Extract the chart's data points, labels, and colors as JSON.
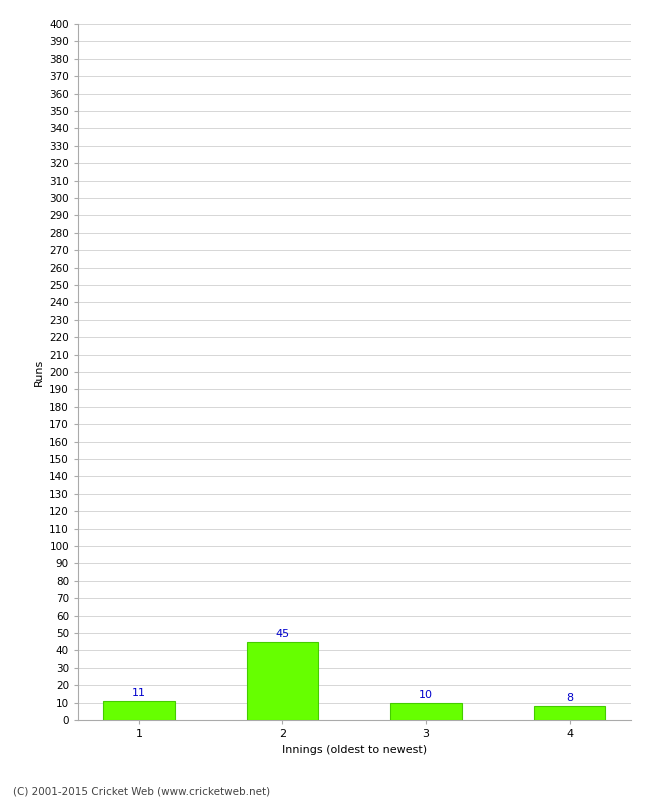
{
  "categories": [
    1,
    2,
    3,
    4
  ],
  "values": [
    11,
    45,
    10,
    8
  ],
  "bar_color": "#66ff00",
  "bar_edge_color": "#44cc00",
  "value_label_color": "#0000cc",
  "xlabel": "Innings (oldest to newest)",
  "ylabel": "Runs",
  "ylim": [
    0,
    400
  ],
  "ytick_step": 10,
  "background_color": "#ffffff",
  "grid_color": "#d0d0d0",
  "footer": "(C) 2001-2015 Cricket Web (www.cricketweb.net)",
  "bar_width": 0.5
}
